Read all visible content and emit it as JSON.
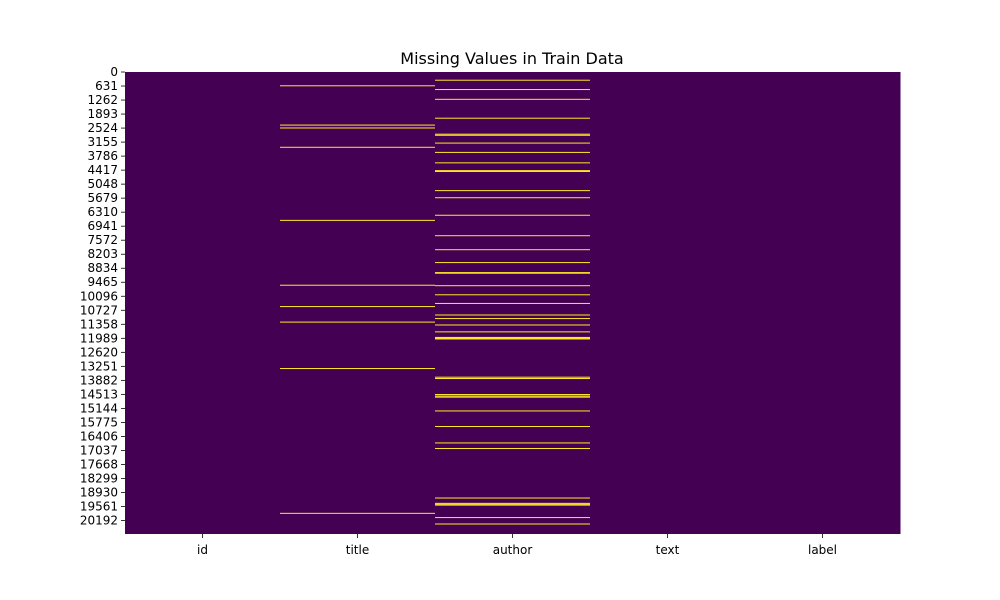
{
  "chart_data": {
    "type": "heatmap",
    "title": "Missing Values in Train Data",
    "xlabel": "",
    "ylabel": "",
    "columns": [
      "id",
      "title",
      "author",
      "text",
      "label"
    ],
    "row_count": 20800,
    "y_tick_labels": [
      0,
      631,
      1262,
      1893,
      2524,
      3155,
      3786,
      4417,
      5048,
      5679,
      6310,
      6941,
      7572,
      8203,
      8834,
      9465,
      10096,
      10727,
      11358,
      11989,
      12620,
      13251,
      13882,
      14513,
      15144,
      15775,
      16406,
      17037,
      17668,
      18299,
      18930,
      19561,
      20192
    ],
    "colors": {
      "present": "#440154",
      "missing": "#fde725"
    },
    "missing_rows": {
      "id": [],
      "title": [
        620,
        2390,
        2520,
        3390,
        6680,
        9600,
        10560,
        11260,
        13350,
        19870
      ],
      "author": [
        370,
        790,
        1230,
        2080,
        2800,
        2850,
        3200,
        3620,
        4090,
        4440,
        4480,
        5340,
        5660,
        6450,
        7370,
        8000,
        8580,
        9030,
        9060,
        9620,
        10030,
        10420,
        10940,
        11100,
        11390,
        11700,
        11950,
        11980,
        12020,
        13740,
        13800,
        14520,
        14590,
        14640,
        15260,
        15960,
        16700,
        16950,
        19180,
        19420,
        19460,
        19500,
        20060,
        20350
      ]
    }
  }
}
